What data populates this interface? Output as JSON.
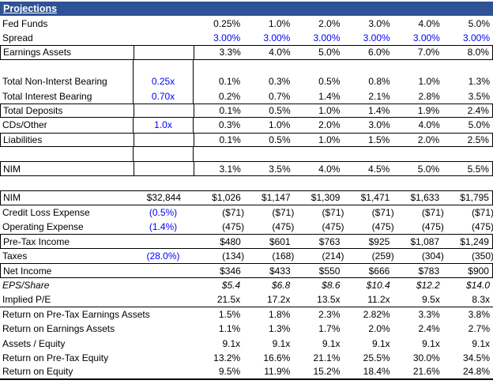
{
  "title": "Projections",
  "colors": {
    "header_bg": "#2D5295",
    "blue_text": "#0000FF",
    "grid": "#000000"
  },
  "sheet": {
    "rows": [
      {
        "label": "Fed Funds",
        "values": [
          "0.25%",
          "1.0%",
          "2.0%",
          "3.0%",
          "4.0%",
          "5.0%"
        ]
      },
      {
        "label": "Spread",
        "values": [
          "3.00%",
          "3.00%",
          "3.00%",
          "3.00%",
          "3.00%",
          "3.00%"
        ],
        "values_color": "blue"
      },
      {
        "label": "Earnings Assets",
        "values": [
          "3.3%",
          "4.0%",
          "5.0%",
          "6.0%",
          "7.0%",
          "8.0%"
        ],
        "boxed": true,
        "section1": true
      },
      {
        "blank": true,
        "section1": true
      },
      {
        "label": "Total Non-Interst Bearing",
        "mult": "0.25x",
        "mult_color": "blue",
        "values": [
          "0.1%",
          "0.3%",
          "0.5%",
          "0.8%",
          "1.0%",
          "1.3%"
        ],
        "section1": true
      },
      {
        "label": "Total Interest Bearing",
        "mult": "0.70x",
        "mult_color": "blue",
        "values": [
          "0.2%",
          "0.7%",
          "1.4%",
          "2.1%",
          "2.8%",
          "3.5%"
        ],
        "section1": true
      },
      {
        "label": "Total Deposits",
        "values": [
          "0.1%",
          "0.5%",
          "1.0%",
          "1.4%",
          "1.9%",
          "2.4%"
        ],
        "boxed": true,
        "section1": true
      },
      {
        "label": "CDs/Other",
        "mult": "1.0x",
        "mult_color": "blue",
        "values": [
          "0.3%",
          "1.0%",
          "2.0%",
          "3.0%",
          "4.0%",
          "5.0%"
        ],
        "section1": true
      },
      {
        "label": "Liabilities",
        "values": [
          "0.1%",
          "0.5%",
          "1.0%",
          "1.5%",
          "2.0%",
          "2.5%"
        ],
        "boxed": true,
        "section1": true
      },
      {
        "blank": true,
        "section1": true
      },
      {
        "label": "NIM",
        "values": [
          "3.1%",
          "3.5%",
          "4.0%",
          "4.5%",
          "5.0%",
          "5.5%"
        ],
        "boxed": true,
        "section1": true
      },
      {
        "blank": true
      },
      {
        "label": "NIM",
        "mult": "$32,844",
        "mult_color": "black",
        "mult_align": "right",
        "values": [
          "$1,026",
          "$1,147",
          "$1,309",
          "$1,471",
          "$1,633",
          "$1,795"
        ],
        "boxed": true
      },
      {
        "label": "Credit Loss Expense",
        "mult": "(0.5%)",
        "mult_color": "blue",
        "values": [
          "($71)",
          "($71)",
          "($71)",
          "($71)",
          "($71)",
          "($71)"
        ]
      },
      {
        "label": "Operating Expense",
        "mult": "(1.4%)",
        "mult_color": "blue",
        "values": [
          "(475)",
          "(475)",
          "(475)",
          "(475)",
          "(475)",
          "(475)"
        ]
      },
      {
        "label": "Pre-Tax Income",
        "values": [
          "$480",
          "$601",
          "$763",
          "$925",
          "$1,087",
          "$1,249"
        ],
        "boxed": true
      },
      {
        "label": "Taxes",
        "mult": "(28.0%)",
        "mult_color": "blue",
        "values": [
          "(134)",
          "(168)",
          "(214)",
          "(259)",
          "(304)",
          "(350)"
        ]
      },
      {
        "label": "Net Income",
        "values": [
          "$346",
          "$433",
          "$550",
          "$666",
          "$783",
          "$900"
        ],
        "boxed": true
      },
      {
        "label": "EPS/Share",
        "italic": true,
        "values": [
          "$5.4",
          "$6.8",
          "$8.6",
          "$10.4",
          "$12.2",
          "$14.0"
        ]
      },
      {
        "label": "Implied P/E",
        "values": [
          "21.5x",
          "17.2x",
          "13.5x",
          "11.2x",
          "9.5x",
          "8.3x"
        ],
        "border_bottom": true
      },
      {
        "label": "Return on Pre-Tax Earnings Assets",
        "values": [
          "1.5%",
          "1.8%",
          "2.3%",
          "2.82%",
          "3.3%",
          "3.8%"
        ]
      },
      {
        "label": "Return on Earnings Assets",
        "values": [
          "1.1%",
          "1.3%",
          "1.7%",
          "2.0%",
          "2.4%",
          "2.7%"
        ]
      },
      {
        "label": "Assets / Equity",
        "values": [
          "9.1x",
          "9.1x",
          "9.1x",
          "9.1x",
          "9.1x",
          "9.1x"
        ]
      },
      {
        "label": "Return on Pre-Tax Equity",
        "values": [
          "13.2%",
          "16.6%",
          "21.1%",
          "25.5%",
          "30.0%",
          "34.5%"
        ]
      },
      {
        "label": "Return on Equity",
        "values": [
          "9.5%",
          "11.9%",
          "15.2%",
          "18.4%",
          "21.6%",
          "24.8%"
        ],
        "border_bottom_thick": true
      }
    ]
  }
}
